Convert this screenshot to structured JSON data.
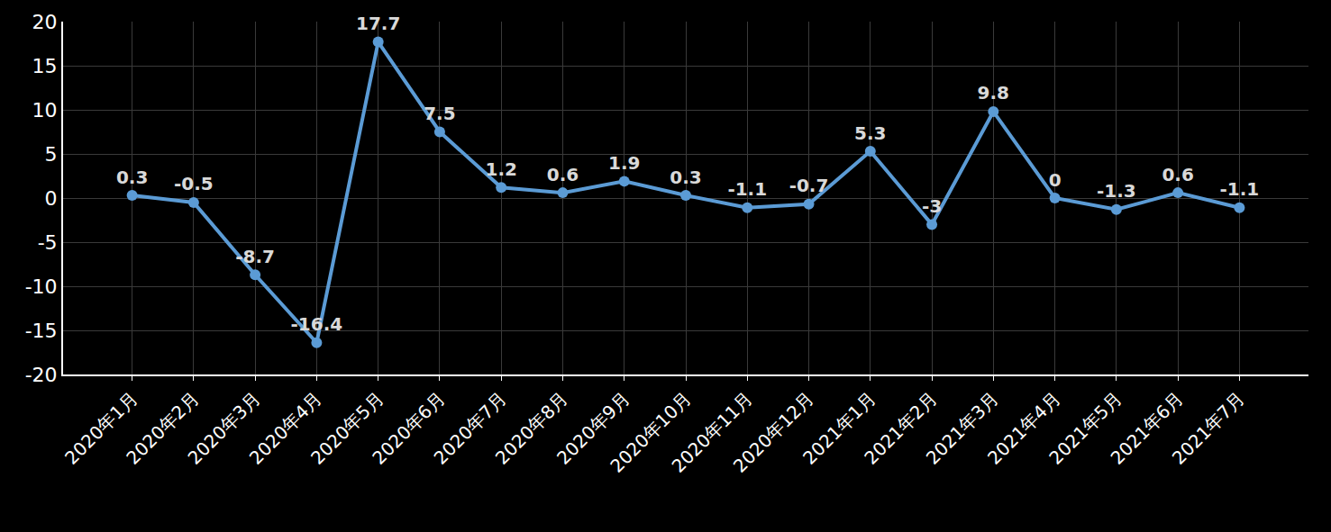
{
  "chart_data": {
    "type": "line",
    "categories": [
      "2020年1月",
      "2020年2月",
      "2020年3月",
      "2020年4月",
      "2020年5月",
      "2020年6月",
      "2020年7月",
      "2020年8月",
      "2020年9月",
      "2020年10月",
      "2020年11月",
      "2020年12月",
      "2021年1月",
      "2021年2月",
      "2021年3月",
      "2021年4月",
      "2021年5月",
      "2021年6月",
      "2021年7月"
    ],
    "values": [
      0.3,
      -0.5,
      -8.7,
      -16.4,
      17.7,
      7.5,
      1.2,
      0.6,
      1.9,
      0.3,
      -1.1,
      -0.7,
      5.3,
      -3,
      9.8,
      0,
      -1.3,
      0.6,
      -1.1
    ],
    "color": "#5b9bd5",
    "marker": "circle",
    "ylim": [
      -20,
      20
    ],
    "yticks": [
      -20,
      -15,
      -10,
      -5,
      0,
      5,
      10,
      15,
      20
    ],
    "grid": true,
    "data_labels": true
  }
}
